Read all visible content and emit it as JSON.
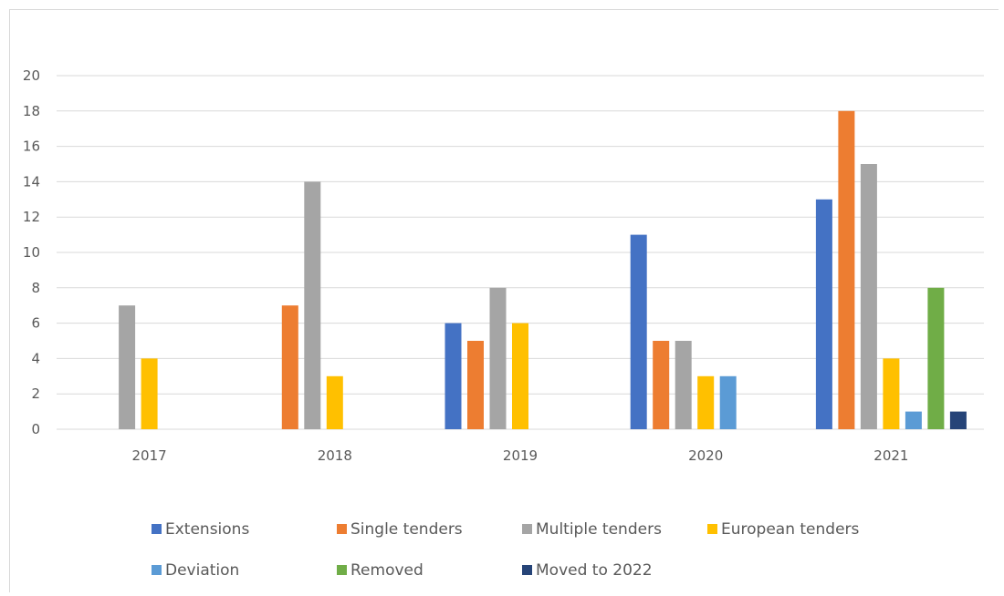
{
  "chart_data": {
    "type": "bar",
    "categories": [
      "2017",
      "2018",
      "2019",
      "2020",
      "2021"
    ],
    "series": [
      {
        "name": "Extensions",
        "color": "#4472C4",
        "values": [
          0,
          0,
          6,
          11,
          13
        ]
      },
      {
        "name": "Single tenders",
        "color": "#ED7D31",
        "values": [
          0,
          7,
          5,
          5,
          18
        ]
      },
      {
        "name": "Multiple tenders",
        "color": "#A5A5A5",
        "values": [
          7,
          14,
          8,
          5,
          15
        ]
      },
      {
        "name": "European tenders",
        "color": "#FFC000",
        "values": [
          4,
          3,
          6,
          3,
          4
        ]
      },
      {
        "name": "Deviation",
        "color": "#5B9BD5",
        "values": [
          0,
          0,
          0,
          3,
          1
        ]
      },
      {
        "name": "Removed",
        "color": "#70AD47",
        "values": [
          0,
          0,
          0,
          0,
          8
        ]
      },
      {
        "name": "Moved to 2022",
        "color": "#264478",
        "values": [
          0,
          0,
          0,
          0,
          1
        ]
      }
    ],
    "yticks": [
      "0",
      "2",
      "4",
      "6",
      "8",
      "10",
      "12",
      "14",
      "16",
      "18",
      "20"
    ],
    "ylim": [
      0,
      20
    ],
    "grid": true,
    "legend_position": "bottom"
  }
}
